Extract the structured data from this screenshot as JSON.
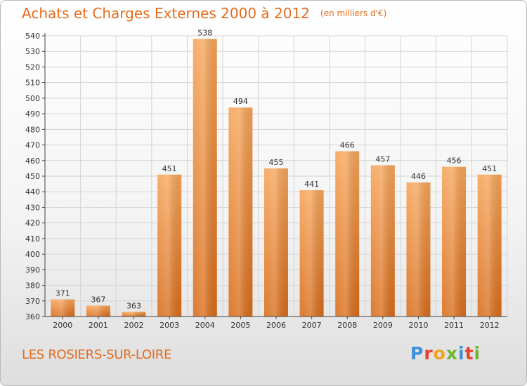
{
  "chart_title": "Achats et Charges Externes 2000 à 2012",
  "chart_unit": "(en milliers d'€)",
  "location": "LES ROSIERS-SUR-LOIRE",
  "brand": {
    "text": "Proxiti",
    "letter_colors": [
      "#3a8fd8",
      "#e8412e",
      "#f0a020",
      "#6cb72e",
      "#3a8fd8",
      "#e8412e",
      "#6cb72e"
    ]
  },
  "colors": {
    "bar_top": "#f6a55a",
    "bar_bottom": "#d86c1a",
    "accent": "#e36c1e",
    "grid": "#d4d4d4",
    "axis": "#444444"
  },
  "chart_data": {
    "type": "bar",
    "title": "Achats et Charges Externes 2000 à 2012",
    "subtitle": "(en milliers d'€)",
    "categories": [
      "2000",
      "2001",
      "2002",
      "2003",
      "2004",
      "2005",
      "2006",
      "2007",
      "2008",
      "2009",
      "2010",
      "2011",
      "2012"
    ],
    "values": [
      371,
      367,
      363,
      451,
      538,
      494,
      455,
      441,
      466,
      457,
      446,
      456,
      451
    ],
    "ylim": [
      360,
      540
    ],
    "yticks": [
      360,
      370,
      380,
      390,
      400,
      410,
      420,
      430,
      440,
      450,
      460,
      470,
      480,
      490,
      500,
      510,
      520,
      530,
      540
    ],
    "grid": true,
    "legend": "none",
    "data_labels": true
  }
}
